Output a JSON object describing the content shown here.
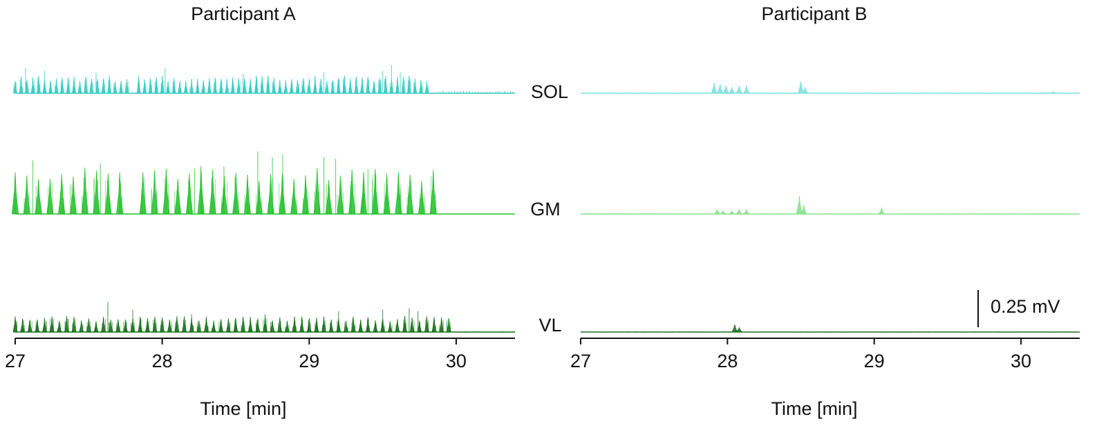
{
  "chart_data": {
    "type": "line",
    "panels": [
      {
        "title": "Participant A",
        "xlabel": "Time [min]",
        "xlim": [
          27,
          30.4
        ],
        "x_ticks": [
          "27",
          "28",
          "29",
          "30"
        ],
        "series": [
          {
            "name": "SOL",
            "color": "#2ec9c2",
            "bursts": {
              "start": 27.0,
              "end": 29.83,
              "interval": 0.04,
              "amplitude": 0.1,
              "gaps": [
                [
                  27.76,
                  27.82
                ]
              ],
              "spikes": [
                [
                  27.07,
                  0.17
                ],
                [
                  27.2,
                  0.15
                ],
                [
                  27.55,
                  0.14
                ],
                [
                  28.02,
                  0.17
                ],
                [
                  28.55,
                  0.13
                ],
                [
                  29.1,
                  0.14
                ],
                [
                  29.5,
                  0.15
                ],
                [
                  29.56,
                  0.19
                ],
                [
                  29.62,
                  0.14
                ]
              ],
              "tail_until": 30.4,
              "tail_amplitude": 0.015
            }
          },
          {
            "name": "GM",
            "color": "#22c02a",
            "bursts": {
              "start": 27.0,
              "end": 29.92,
              "interval": 0.079,
              "amplitude": 0.27,
              "gaps": [
                [
                  27.76,
                  27.84
                ]
              ],
              "spikes": [
                [
                  27.12,
                  0.36
                ],
                [
                  27.58,
                  0.34
                ],
                [
                  28.22,
                  0.3
                ],
                [
                  28.42,
                  0.32
                ],
                [
                  28.65,
                  0.42
                ],
                [
                  28.75,
                  0.38
                ],
                [
                  28.82,
                  0.4
                ],
                [
                  29.1,
                  0.38
                ],
                [
                  29.18,
                  0.37
                ],
                [
                  29.4,
                  0.3
                ]
              ],
              "tail_until": 30.4,
              "tail_amplitude": 0.005
            }
          },
          {
            "name": "VL",
            "color": "#116e14",
            "bursts": {
              "start": 27.0,
              "end": 29.97,
              "interval": 0.05,
              "amplitude": 0.09,
              "gaps": [
                [
                  27.76,
                  27.8
                ]
              ],
              "spikes": [
                [
                  27.63,
                  0.2
                ],
                [
                  27.8,
                  0.15
                ],
                [
                  28.2,
                  0.12
                ],
                [
                  28.7,
                  0.12
                ],
                [
                  29.2,
                  0.14
                ],
                [
                  29.5,
                  0.15
                ],
                [
                  29.68,
                  0.16
                ],
                [
                  29.74,
                  0.14
                ]
              ],
              "tail_until": 30.4,
              "tail_amplitude": 0.004
            }
          }
        ]
      },
      {
        "title": "Participant B",
        "xlabel": "Time [min]",
        "xlim": [
          27,
          30.4
        ],
        "x_ticks": [
          "27",
          "28",
          "29",
          "30"
        ],
        "series": [
          {
            "name": "SOL",
            "color": "#7fe0da",
            "events": [
              [
                27.91,
                0.07
              ],
              [
                27.95,
                0.06
              ],
              [
                27.99,
                0.05
              ],
              [
                28.03,
                0.04
              ],
              [
                28.08,
                0.05
              ],
              [
                28.13,
                0.05
              ],
              [
                28.5,
                0.08
              ],
              [
                28.53,
                0.04
              ],
              [
                30.22,
                0.01
              ]
            ],
            "baseline_noise": 0.006
          },
          {
            "name": "GM",
            "color": "#8ae08c",
            "events": [
              [
                27.93,
                0.03
              ],
              [
                27.97,
                0.02
              ],
              [
                28.03,
                0.02
              ],
              [
                28.08,
                0.03
              ],
              [
                28.13,
                0.03
              ],
              [
                28.49,
                0.12
              ],
              [
                28.52,
                0.06
              ],
              [
                29.05,
                0.04
              ]
            ],
            "baseline_noise": 0.006
          },
          {
            "name": "VL",
            "color": "#1f6e22",
            "events": [
              [
                28.05,
                0.05
              ],
              [
                28.08,
                0.03
              ]
            ],
            "baseline_noise": 0.005
          }
        ]
      }
    ],
    "scale_bar": {
      "label": "0.25 mV",
      "value_mV": 0.25
    },
    "grid": false,
    "legend": "none"
  }
}
